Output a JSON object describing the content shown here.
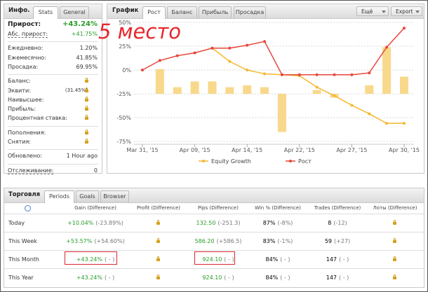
{
  "info": {
    "title": "Инфо.",
    "tabs": [
      "Stats",
      "General"
    ],
    "headline": {
      "label": "Прирост:",
      "value": "+43.24%"
    },
    "groups": [
      [
        {
          "label": "Абс. прирост:",
          "value": "+41.75%"
        }
      ],
      [
        {
          "label": "Ежедневно:",
          "value": "1.20%"
        },
        {
          "label": "Ежемесячно:",
          "value": "41.85%"
        },
        {
          "label": "Просадка:",
          "value": "69.95%"
        }
      ],
      [
        {
          "label": "Баланс:"
        },
        {
          "label": "Эквити:",
          "note": "(31.45%)"
        },
        {
          "label": "Наивысшее:"
        },
        {
          "label": "Прибыль:"
        },
        {
          "label": "Процентная ставка:"
        }
      ],
      [
        {
          "label": "Пополнения:"
        },
        {
          "label": "Снятия:"
        }
      ],
      [
        {
          "label": "Обновлено:",
          "value": "1 Hour ago"
        }
      ],
      [
        {
          "label": "Отслеживание:",
          "value": "0"
        }
      ]
    ]
  },
  "chart_panel": {
    "title": "График",
    "tabs": [
      "Рост",
      "Баланс",
      "Прибыль",
      "Просадка"
    ],
    "buttons": [
      "Ещё",
      "Export"
    ],
    "annotation": "5 место"
  },
  "chart_data": {
    "type": "line",
    "categories": [
      "Mar 31, '15",
      null,
      null,
      "Apr 09, '15",
      null,
      null,
      "Apr 14, '15",
      null,
      null,
      "Apr 22, '15",
      null,
      null,
      "Apr 27, '15",
      null,
      null,
      "Apr 30, '15"
    ],
    "ylim": [
      -75,
      50
    ],
    "yticks": [
      {
        "value": 50,
        "label": "50%"
      },
      {
        "value": 25,
        "label": "25%"
      },
      {
        "value": 0,
        "label": "0%"
      },
      {
        "value": -25,
        "label": "-25%"
      },
      {
        "value": -50,
        "label": "-50%"
      },
      {
        "value": -75,
        "label": "-75%"
      }
    ],
    "y2lim": [
      -50,
      75
    ],
    "grid": true,
    "series": [
      {
        "name": "Equity Growth",
        "color": "#f5b82e",
        "values": [
          null,
          null,
          null,
          null,
          23,
          9,
          0,
          -4,
          -5,
          -6,
          -18,
          -27,
          -37,
          -46,
          -56,
          -56
        ]
      },
      {
        "name": "Рост",
        "color": "#e8463c",
        "values": [
          0,
          10,
          15,
          18,
          23,
          23,
          26,
          30,
          -5,
          -5,
          -5,
          -5,
          -5,
          -3,
          24,
          44
        ]
      },
      {
        "type": "bar",
        "axis": "y2",
        "color": "#f8d98b",
        "values": [
          null,
          26,
          7,
          13,
          13,
          7,
          9,
          7,
          -40,
          null,
          4,
          -4,
          null,
          9,
          49,
          18
        ]
      }
    ]
  },
  "table": {
    "title": "Торговля",
    "tabs": [
      "Periods",
      "Goals",
      "Browser"
    ],
    "columns": [
      "Gain (Difference)",
      "Profit (Difference)",
      "Pips (Difference)",
      "Win % (Difference)",
      "Trades (Difference)",
      "Лоты (Difference)"
    ],
    "rows": [
      {
        "label": "Today",
        "gain": {
          "value": "+10.04%",
          "diff": "(-23.89%)"
        },
        "pips": {
          "value": "132.50",
          "diff": "(-251.3)"
        },
        "win": {
          "value": "87%",
          "diff": "(-8%)"
        },
        "trades": {
          "value": "8",
          "diff": "(-12)"
        }
      },
      {
        "label": "This Week",
        "gain": {
          "value": "+53.57%",
          "diff": "(+54.60%)"
        },
        "pips": {
          "value": "586.20",
          "diff": "(+586.5)"
        },
        "win": {
          "value": "83%",
          "diff": "(-1%)"
        },
        "trades": {
          "value": "59",
          "diff": "(+27)"
        }
      },
      {
        "label": "This Month",
        "gain": {
          "value": "+43.24%",
          "diff": "( - )"
        },
        "pips": {
          "value": "924.10",
          "diff": "( - )"
        },
        "win": {
          "value": "84%",
          "diff": "( - )"
        },
        "trades": {
          "value": "147",
          "diff": "( - )"
        }
      },
      {
        "label": "This Year",
        "gain": {
          "value": "+43.24%",
          "diff": "( - )"
        },
        "pips": {
          "value": "924.10",
          "diff": "( - )"
        },
        "win": {
          "value": "84%",
          "diff": "( - )"
        },
        "trades": {
          "value": "147",
          "diff": "( - )"
        }
      }
    ]
  }
}
